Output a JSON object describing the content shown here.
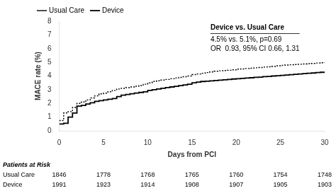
{
  "chart_data": {
    "type": "step",
    "title": "Device vs. Usual Care",
    "annotations": [
      "4.5% vs. 5.1%, p=0.69",
      "OR  0.93, 95% CI 0.66, 1.31"
    ],
    "xlabel": "Days from PCI",
    "ylabel": "MACE rate (%)",
    "xlim": [
      0,
      30
    ],
    "ylim": [
      0,
      8
    ],
    "xticks": [
      0,
      5,
      10,
      15,
      20,
      25,
      30
    ],
    "yticks": [
      0,
      1,
      2,
      3,
      4,
      5,
      6,
      7,
      8
    ],
    "grid": false,
    "legend": "upper left",
    "series": [
      {
        "name": "Usual Care",
        "color": "#000000",
        "line_style": "dotted",
        "x": [
          0,
          0.5,
          1.0,
          1.5,
          2.0,
          2.5,
          3.0,
          3.5,
          4.0,
          4.5,
          5.0,
          5.5,
          6.0,
          6.5,
          7.0,
          7.5,
          8.0,
          8.5,
          9.0,
          9.5,
          10.0,
          10.5,
          11.0,
          11.5,
          12.0,
          12.5,
          13.0,
          13.5,
          14.0,
          14.5,
          15.0,
          15.5,
          16.0,
          16.5,
          17.0,
          17.5,
          18.0,
          18.5,
          19.0,
          19.5,
          20.0,
          20.5,
          21.0,
          21.5,
          22.0,
          22.5,
          23.0,
          23.5,
          24.0,
          24.5,
          25.0,
          25.5,
          26.0,
          26.5,
          27.0,
          27.5,
          28.0,
          28.5,
          29.0,
          29.5,
          30.0
        ],
        "values": [
          0.75,
          1.3,
          1.4,
          1.7,
          2.0,
          2.1,
          2.25,
          2.4,
          2.55,
          2.7,
          2.75,
          2.85,
          2.95,
          3.05,
          3.1,
          3.15,
          3.2,
          3.25,
          3.3,
          3.4,
          3.5,
          3.6,
          3.65,
          3.7,
          3.75,
          3.8,
          3.85,
          3.9,
          3.95,
          4.0,
          4.1,
          4.15,
          4.2,
          4.25,
          4.3,
          4.35,
          4.38,
          4.4,
          4.42,
          4.45,
          4.5,
          4.52,
          4.55,
          4.57,
          4.6,
          4.62,
          4.65,
          4.67,
          4.7,
          4.75,
          4.78,
          4.8,
          4.82,
          4.84,
          4.86,
          4.88,
          4.9,
          4.92,
          4.95,
          4.97,
          5.0
        ]
      },
      {
        "name": "Device",
        "color": "#000000",
        "line_style": "solid",
        "x": [
          0,
          0.5,
          1.0,
          1.5,
          2.0,
          2.5,
          3.0,
          3.5,
          4.0,
          4.5,
          5.0,
          5.5,
          6.0,
          6.5,
          7.0,
          7.5,
          8.0,
          8.5,
          9.0,
          9.5,
          10.0,
          10.5,
          11.0,
          11.5,
          12.0,
          12.5,
          13.0,
          13.5,
          14.0,
          14.5,
          15.0,
          15.5,
          16.0,
          16.5,
          17.0,
          17.5,
          18.0,
          18.5,
          19.0,
          19.5,
          20.0,
          20.5,
          21.0,
          21.5,
          22.0,
          22.5,
          23.0,
          23.5,
          24.0,
          24.5,
          25.0,
          25.5,
          26.0,
          26.5,
          27.0,
          27.5,
          28.0,
          28.5,
          29.0,
          29.5,
          30.0
        ],
        "values": [
          0.5,
          0.55,
          1.0,
          1.3,
          1.8,
          1.85,
          1.95,
          2.05,
          2.15,
          2.2,
          2.25,
          2.3,
          2.35,
          2.5,
          2.6,
          2.65,
          2.7,
          2.75,
          2.8,
          2.85,
          2.95,
          3.0,
          3.05,
          3.1,
          3.15,
          3.2,
          3.25,
          3.3,
          3.35,
          3.4,
          3.5,
          3.55,
          3.6,
          3.62,
          3.65,
          3.67,
          3.7,
          3.72,
          3.75,
          3.78,
          3.8,
          3.83,
          3.85,
          3.87,
          3.9,
          3.92,
          3.95,
          3.97,
          4.0,
          4.02,
          4.05,
          4.07,
          4.1,
          4.12,
          4.15,
          4.17,
          4.2,
          4.22,
          4.25,
          4.27,
          4.3
        ]
      }
    ],
    "risk_table": {
      "title": "Patients at Risk",
      "x": [
        0,
        5,
        10,
        15,
        20,
        25,
        30
      ],
      "rows": [
        {
          "name": "Usual Care",
          "values": [
            1846,
            1778,
            1768,
            1765,
            1760,
            1754,
            1748
          ]
        },
        {
          "name": "Device",
          "values": [
            1991,
            1923,
            1914,
            1908,
            1907,
            1905,
            1903
          ]
        }
      ]
    }
  }
}
